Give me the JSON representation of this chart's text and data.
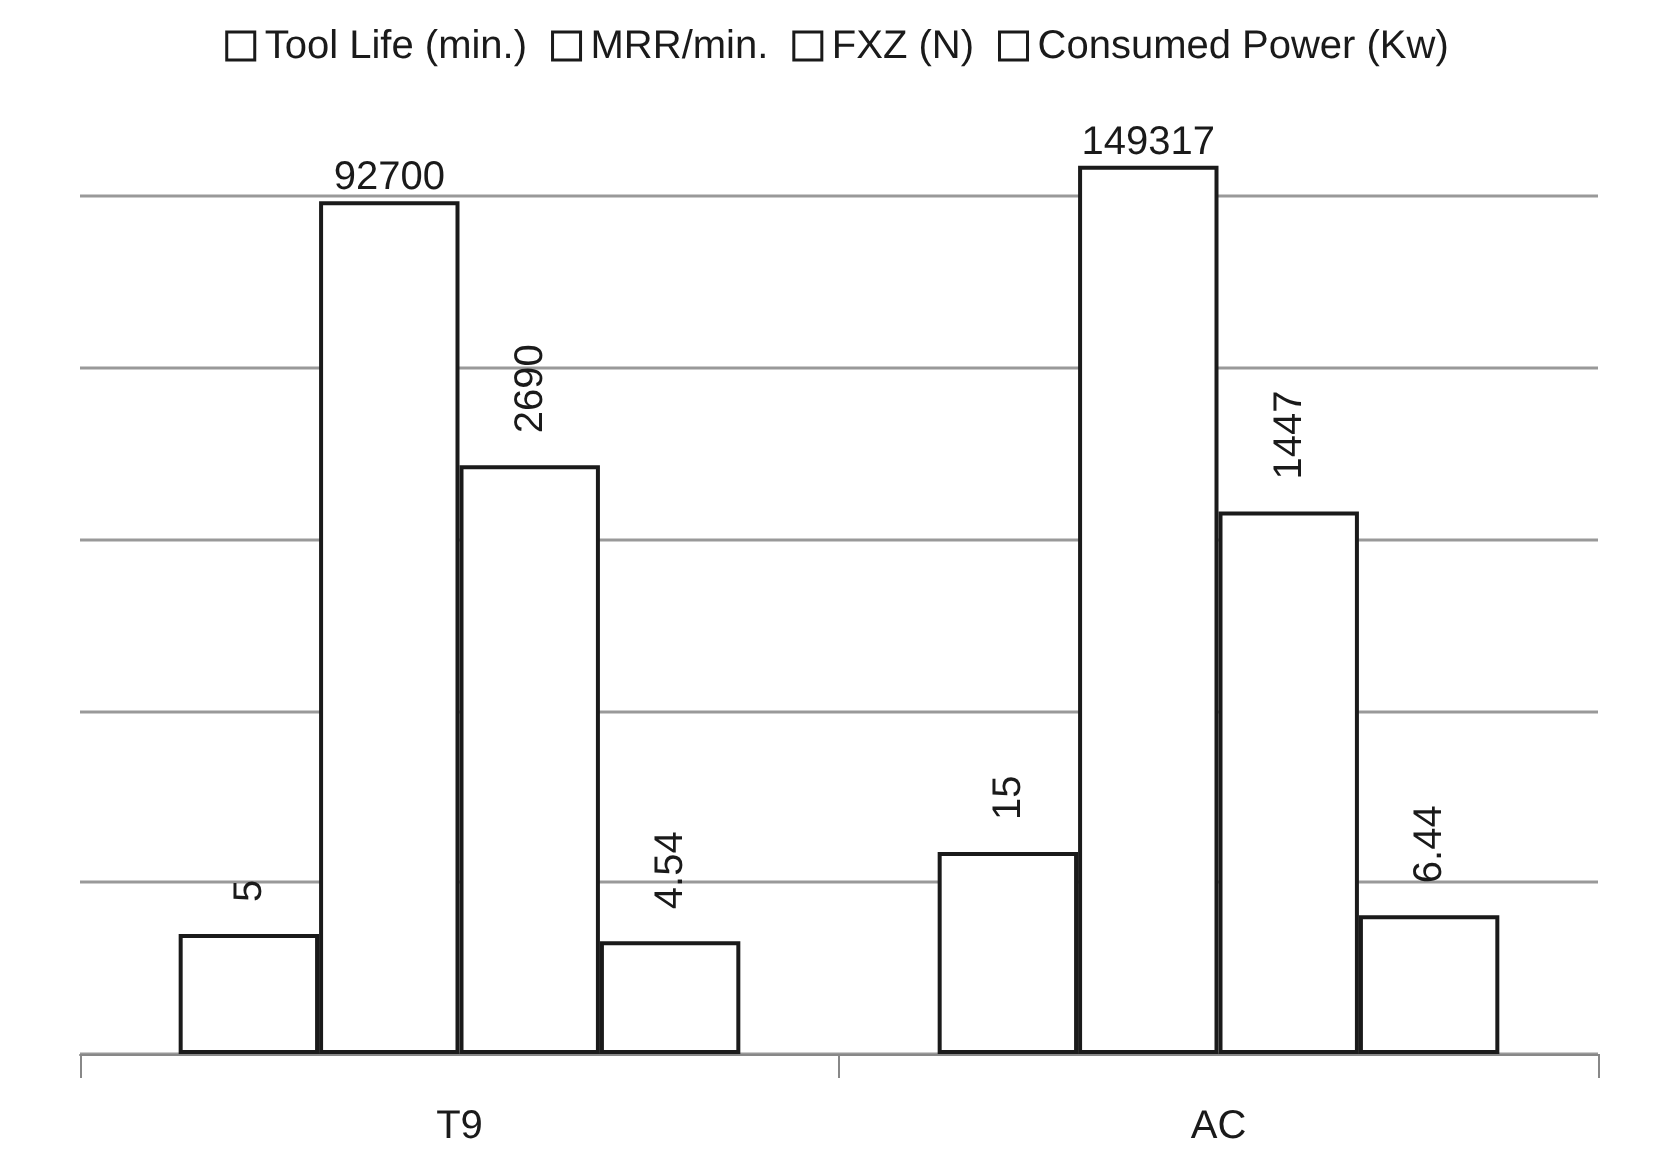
{
  "chart_data": {
    "type": "bar",
    "categories": [
      "T9",
      "AC"
    ],
    "series": [
      {
        "name": "Tool Life (min.)",
        "color": "#ffffff",
        "values": [
          5,
          15
        ]
      },
      {
        "name": "MRR/min.",
        "color": "#ffffff",
        "values": [
          92700,
          149317
        ]
      },
      {
        "name": "FXZ (N)",
        "color": "#ffffff",
        "values": [
          2690,
          1447
        ]
      },
      {
        "name": "Consumed Power (Kw)",
        "color": "#ffffff",
        "values": [
          4.54,
          6.44
        ]
      }
    ],
    "log": "y",
    "ylim": [
      1,
      1000000
    ],
    "yticks": [
      {
        "value": 1,
        "label": null
      },
      {
        "value": 10,
        "label": null
      },
      {
        "value": 100,
        "label": null
      },
      {
        "value": 1000,
        "label": null
      },
      {
        "value": 10000,
        "label": null
      },
      {
        "value": 100000,
        "label": null
      }
    ],
    "data_labels": true,
    "grid": "y",
    "legend": "top",
    "tick_labels": "x"
  }
}
